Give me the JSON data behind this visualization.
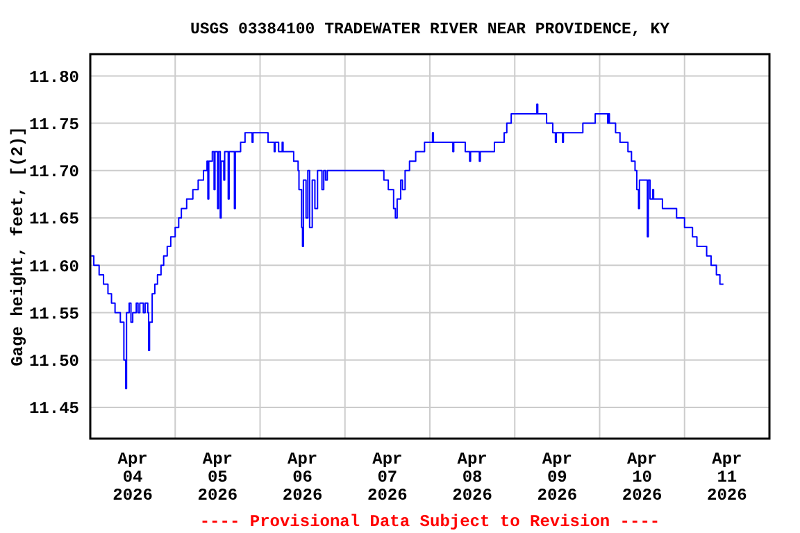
{
  "chart_data": {
    "type": "step",
    "title": "USGS 03384100 TRADEWATER RIVER NEAR PROVIDENCE, KY",
    "ylabel": "Gage height, feet, [(2)]",
    "annotations": [
      "---- Provisional Data Subject to Revision ----"
    ],
    "xlim": [
      "2026-04-04T00:00",
      "2026-04-12T00:00"
    ],
    "xticks": [
      {
        "value": "2026-04-04T12:00",
        "label": "Apr 04 2026"
      },
      {
        "value": "2026-04-05T00:00",
        "label": null
      },
      {
        "value": "2026-04-05T12:00",
        "label": "Apr 05 2026"
      },
      {
        "value": "2026-04-06T00:00",
        "label": null
      },
      {
        "value": "2026-04-06T12:00",
        "label": "Apr 06 2026"
      },
      {
        "value": "2026-04-07T00:00",
        "label": null
      },
      {
        "value": "2026-04-07T12:00",
        "label": "Apr 07 2026"
      },
      {
        "value": "2026-04-08T00:00",
        "label": null
      },
      {
        "value": "2026-04-08T12:00",
        "label": "Apr 08 2026"
      },
      {
        "value": "2026-04-09T00:00",
        "label": null
      },
      {
        "value": "2026-04-09T12:00",
        "label": "Apr 09 2026"
      },
      {
        "value": "2026-04-10T00:00",
        "label": null
      },
      {
        "value": "2026-04-10T12:00",
        "label": "Apr 10 2026"
      },
      {
        "value": "2026-04-11T00:00",
        "label": null
      },
      {
        "value": "2026-04-11T12:00",
        "label": "Apr 11 2026"
      }
    ],
    "ylim": [
      11.417,
      11.823
    ],
    "yticks": [
      11.45,
      {
        "value": 11.5,
        "label": "11.50"
      },
      11.55,
      {
        "value": 11.6,
        "label": "11.60"
      },
      11.65,
      {
        "value": 11.7,
        "label": "11.70"
      },
      11.75,
      {
        "value": 11.8,
        "label": "11.80"
      }
    ],
    "grid": true,
    "marker": "none",
    "line_style": "solid",
    "series": [
      {
        "color": "#0000ff",
        "x": [
          "2026-04-04T00:15",
          "2026-04-04T01:00",
          "2026-04-04T02:30",
          "2026-04-04T03:45",
          "2026-04-04T05:00",
          "2026-04-04T06:00",
          "2026-04-04T07:00",
          "2026-04-04T08:30",
          "2026-04-04T09:30",
          "2026-04-04T10:00",
          "2026-04-04T10:15",
          "2026-04-04T11:00",
          "2026-04-04T11:30",
          "2026-04-04T12:00",
          "2026-04-04T13:00",
          "2026-04-04T13:30",
          "2026-04-04T14:00",
          "2026-04-04T15:00",
          "2026-04-04T15:30",
          "2026-04-04T16:15",
          "2026-04-04T16:30",
          "2026-04-04T16:45",
          "2026-04-04T17:30",
          "2026-04-04T18:15",
          "2026-04-04T19:00",
          "2026-04-04T20:00",
          "2026-04-04T20:45",
          "2026-04-04T21:45",
          "2026-04-04T22:45",
          "2026-04-05T00:00",
          "2026-04-05T01:00",
          "2026-04-05T01:45",
          "2026-04-05T03:15",
          "2026-04-05T05:00",
          "2026-04-05T06:30",
          "2026-04-05T08:00",
          "2026-04-05T09:00",
          "2026-04-05T09:15",
          "2026-04-05T09:30",
          "2026-04-05T10:30",
          "2026-04-05T11:00",
          "2026-04-05T11:15",
          "2026-04-05T12:00",
          "2026-04-05T12:15",
          "2026-04-05T12:45",
          "2026-04-05T13:00",
          "2026-04-05T13:45",
          "2026-04-05T14:00",
          "2026-04-05T15:00",
          "2026-04-05T15:15",
          "2026-04-05T16:45",
          "2026-04-05T17:00",
          "2026-04-05T18:30",
          "2026-04-05T19:45",
          "2026-04-05T21:45",
          "2026-04-05T22:00",
          "2026-04-06T02:15",
          "2026-04-06T04:00",
          "2026-04-06T04:15",
          "2026-04-06T05:15",
          "2026-04-06T06:15",
          "2026-04-06T06:30",
          "2026-04-06T09:30",
          "2026-04-06T10:45",
          "2026-04-06T11:00",
          "2026-04-06T11:45",
          "2026-04-06T12:00",
          "2026-04-06T12:15",
          "2026-04-06T13:00",
          "2026-04-06T13:30",
          "2026-04-06T14:00",
          "2026-04-06T14:45",
          "2026-04-06T15:30",
          "2026-04-06T16:15",
          "2026-04-06T17:30",
          "2026-04-06T18:00",
          "2026-04-06T18:30",
          "2026-04-06T19:00",
          "2026-04-07T11:00",
          "2026-04-07T12:15",
          "2026-04-07T13:45",
          "2026-04-07T14:15",
          "2026-04-07T14:45",
          "2026-04-07T15:45",
          "2026-04-07T16:15",
          "2026-04-07T17:00",
          "2026-04-07T18:15",
          "2026-04-07T20:00",
          "2026-04-07T22:30",
          "2026-04-08T00:45",
          "2026-04-08T01:00",
          "2026-04-08T06:30",
          "2026-04-08T06:45",
          "2026-04-08T10:00",
          "2026-04-08T11:15",
          "2026-04-08T11:30",
          "2026-04-08T14:00",
          "2026-04-08T14:15",
          "2026-04-08T18:15",
          "2026-04-08T21:00",
          "2026-04-08T21:45",
          "2026-04-08T23:00",
          "2026-04-09T06:15",
          "2026-04-09T06:30",
          "2026-04-09T09:00",
          "2026-04-09T10:45",
          "2026-04-09T11:30",
          "2026-04-09T11:45",
          "2026-04-09T13:30",
          "2026-04-09T13:45",
          "2026-04-09T19:15",
          "2026-04-09T22:45",
          "2026-04-10T02:15",
          "2026-04-10T02:30",
          "2026-04-10T02:45",
          "2026-04-10T04:30",
          "2026-04-10T05:45",
          "2026-04-10T08:00",
          "2026-04-10T09:00",
          "2026-04-10T10:00",
          "2026-04-10T10:30",
          "2026-04-10T11:00",
          "2026-04-10T11:15",
          "2026-04-10T13:30",
          "2026-04-10T13:45",
          "2026-04-10T14:15",
          "2026-04-10T15:00",
          "2026-04-10T15:15",
          "2026-04-10T17:45",
          "2026-04-10T21:45",
          "2026-04-11T00:00",
          "2026-04-11T02:15",
          "2026-04-11T03:30",
          "2026-04-11T06:15",
          "2026-04-11T07:30",
          "2026-04-11T09:00",
          "2026-04-11T10:00",
          "2026-04-11T11:00"
        ],
        "values": [
          11.61,
          11.6,
          11.59,
          11.58,
          11.57,
          11.56,
          11.55,
          11.54,
          11.5,
          11.47,
          11.55,
          11.56,
          11.54,
          11.55,
          11.56,
          11.55,
          11.56,
          11.55,
          11.56,
          11.55,
          11.51,
          11.54,
          11.57,
          11.58,
          11.59,
          11.6,
          11.61,
          11.62,
          11.63,
          11.64,
          11.65,
          11.66,
          11.67,
          11.68,
          11.69,
          11.7,
          11.71,
          11.67,
          11.71,
          11.72,
          11.68,
          11.72,
          11.66,
          11.72,
          11.65,
          11.71,
          11.69,
          11.72,
          11.67,
          11.72,
          11.66,
          11.72,
          11.73,
          11.74,
          11.73,
          11.74,
          11.73,
          11.72,
          11.73,
          11.72,
          11.73,
          11.72,
          11.71,
          11.7,
          11.68,
          11.64,
          11.62,
          11.69,
          11.65,
          11.7,
          11.64,
          11.69,
          11.66,
          11.7,
          11.68,
          11.7,
          11.69,
          11.7,
          11.69,
          11.68,
          11.66,
          11.65,
          11.67,
          11.69,
          11.68,
          11.7,
          11.71,
          11.72,
          11.73,
          11.74,
          11.73,
          11.72,
          11.73,
          11.72,
          11.71,
          11.72,
          11.71,
          11.72,
          11.73,
          11.74,
          11.75,
          11.76,
          11.77,
          11.76,
          11.75,
          11.74,
          11.73,
          11.74,
          11.73,
          11.74,
          11.75,
          11.76,
          11.75,
          11.76,
          11.75,
          11.74,
          11.73,
          11.72,
          11.71,
          11.7,
          11.68,
          11.66,
          11.69,
          11.63,
          11.69,
          11.67,
          11.68,
          11.67,
          11.66,
          11.65,
          11.64,
          11.63,
          11.62,
          11.61,
          11.6,
          11.59,
          11.58,
          11.58
        ]
      }
    ]
  }
}
